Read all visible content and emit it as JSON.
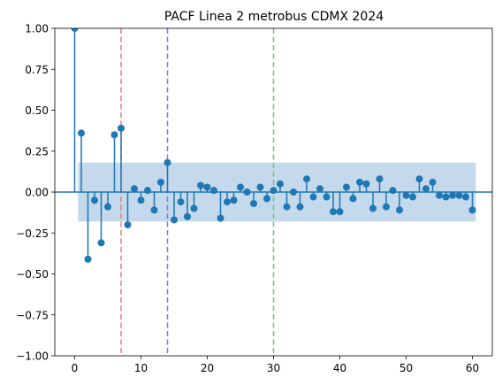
{
  "chart_data": {
    "type": "stem",
    "title": "PACF Linea 2 metrobus CDMX 2024",
    "xlabel": "",
    "ylabel": "",
    "xlim": [
      -3,
      63
    ],
    "ylim": [
      -1.0,
      1.0
    ],
    "xticks": [
      0,
      10,
      20,
      30,
      40,
      50,
      60
    ],
    "yticks": [
      -1.0,
      -0.75,
      -0.5,
      -0.25,
      0.0,
      0.25,
      0.5,
      0.75,
      1.0
    ],
    "ytick_labels": [
      "−1.00",
      "−0.75",
      "−0.50",
      "−0.25",
      "0.00",
      "0.25",
      "0.50",
      "0.75",
      "1.00"
    ],
    "grid": false,
    "lags": [
      0,
      1,
      2,
      3,
      4,
      5,
      6,
      7,
      8,
      9,
      10,
      11,
      12,
      13,
      14,
      15,
      16,
      17,
      18,
      19,
      20,
      21,
      22,
      23,
      24,
      25,
      26,
      27,
      28,
      29,
      30,
      31,
      32,
      33,
      34,
      35,
      36,
      37,
      38,
      39,
      40,
      41,
      42,
      43,
      44,
      45,
      46,
      47,
      48,
      49,
      50,
      51,
      52,
      53,
      54,
      55,
      56,
      57,
      58,
      59,
      60
    ],
    "values": [
      1.0,
      0.36,
      -0.41,
      -0.05,
      -0.31,
      -0.09,
      0.35,
      0.39,
      -0.2,
      0.02,
      -0.05,
      0.01,
      -0.11,
      0.06,
      0.18,
      -0.17,
      -0.06,
      -0.15,
      -0.1,
      0.04,
      0.03,
      0.01,
      -0.16,
      -0.06,
      -0.05,
      0.03,
      0.0,
      -0.07,
      0.03,
      -0.04,
      0.01,
      0.05,
      -0.09,
      0.0,
      -0.09,
      0.08,
      -0.03,
      0.02,
      -0.03,
      -0.12,
      -0.12,
      0.03,
      -0.04,
      0.06,
      0.05,
      -0.1,
      0.08,
      -0.09,
      0.01,
      -0.11,
      -0.02,
      -0.03,
      0.08,
      0.02,
      0.06,
      -0.02,
      -0.03,
      -0.02,
      -0.02,
      -0.03,
      -0.11
    ],
    "confidence_band": {
      "x_range": [
        0.5,
        60.5
      ],
      "upper": 0.18,
      "lower": -0.18
    },
    "vertical_lines": [
      {
        "x": 7,
        "color": "#f47a7a",
        "style": "dashed"
      },
      {
        "x": 14,
        "color": "#7a7af0",
        "style": "dashed"
      },
      {
        "x": 30,
        "color": "#72c472",
        "style": "dashed"
      }
    ],
    "colors": {
      "stem": "#1f77b4",
      "band": "#c4d9ec",
      "text": "#000000"
    }
  }
}
